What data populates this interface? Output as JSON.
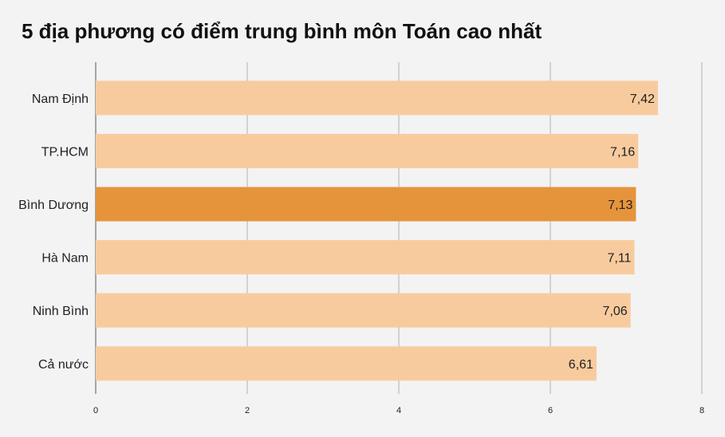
{
  "chart_data": {
    "type": "bar",
    "orientation": "horizontal",
    "title": "5 địa phương có điểm trung bình môn Toán cao nhất",
    "categories": [
      "Nam Định",
      "TP.HCM",
      "Bình Dương",
      "Hà Nam",
      "Ninh Bình",
      "Cả nước"
    ],
    "values": [
      7.42,
      7.16,
      7.13,
      7.11,
      7.06,
      6.61
    ],
    "value_labels": [
      "7,42",
      "7,16",
      "7,13",
      "7,11",
      "7,06",
      "6,61"
    ],
    "highlighted_category": "Bình Dương",
    "xlim": [
      0,
      8
    ],
    "xticks": [
      0,
      2,
      4,
      6,
      8
    ],
    "xtick_labels": [
      "0",
      "2",
      "4",
      "6",
      "8"
    ],
    "grid": true,
    "colors": {
      "bar": "#f8cb9e",
      "highlight": "#e6943c",
      "grid": "#b0b0b0",
      "text": "#222222",
      "background": "#f3f3f3"
    }
  }
}
